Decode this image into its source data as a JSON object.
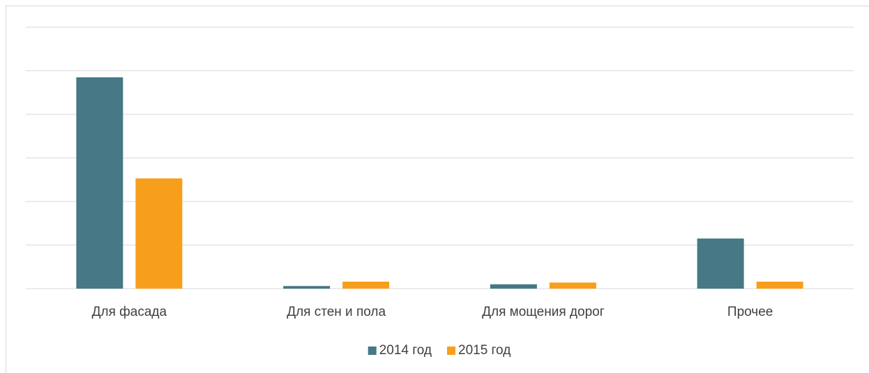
{
  "chart_data": {
    "type": "bar",
    "categories": [
      "Для фасада",
      "Для стен и пола",
      "Для мощения дорог",
      "Прочее"
    ],
    "series": [
      {
        "name": "2014 год",
        "color": "#467886",
        "values": [
          4.85,
          0.06,
          0.1,
          1.15
        ]
      },
      {
        "name": "2015 год",
        "color": "#f79f1d",
        "values": [
          2.53,
          0.16,
          0.14,
          0.16
        ]
      }
    ],
    "ylim": [
      0,
      6
    ],
    "yticks": [
      0,
      1,
      2,
      3,
      4,
      5,
      6
    ],
    "grid": true,
    "legend": "bottom"
  }
}
